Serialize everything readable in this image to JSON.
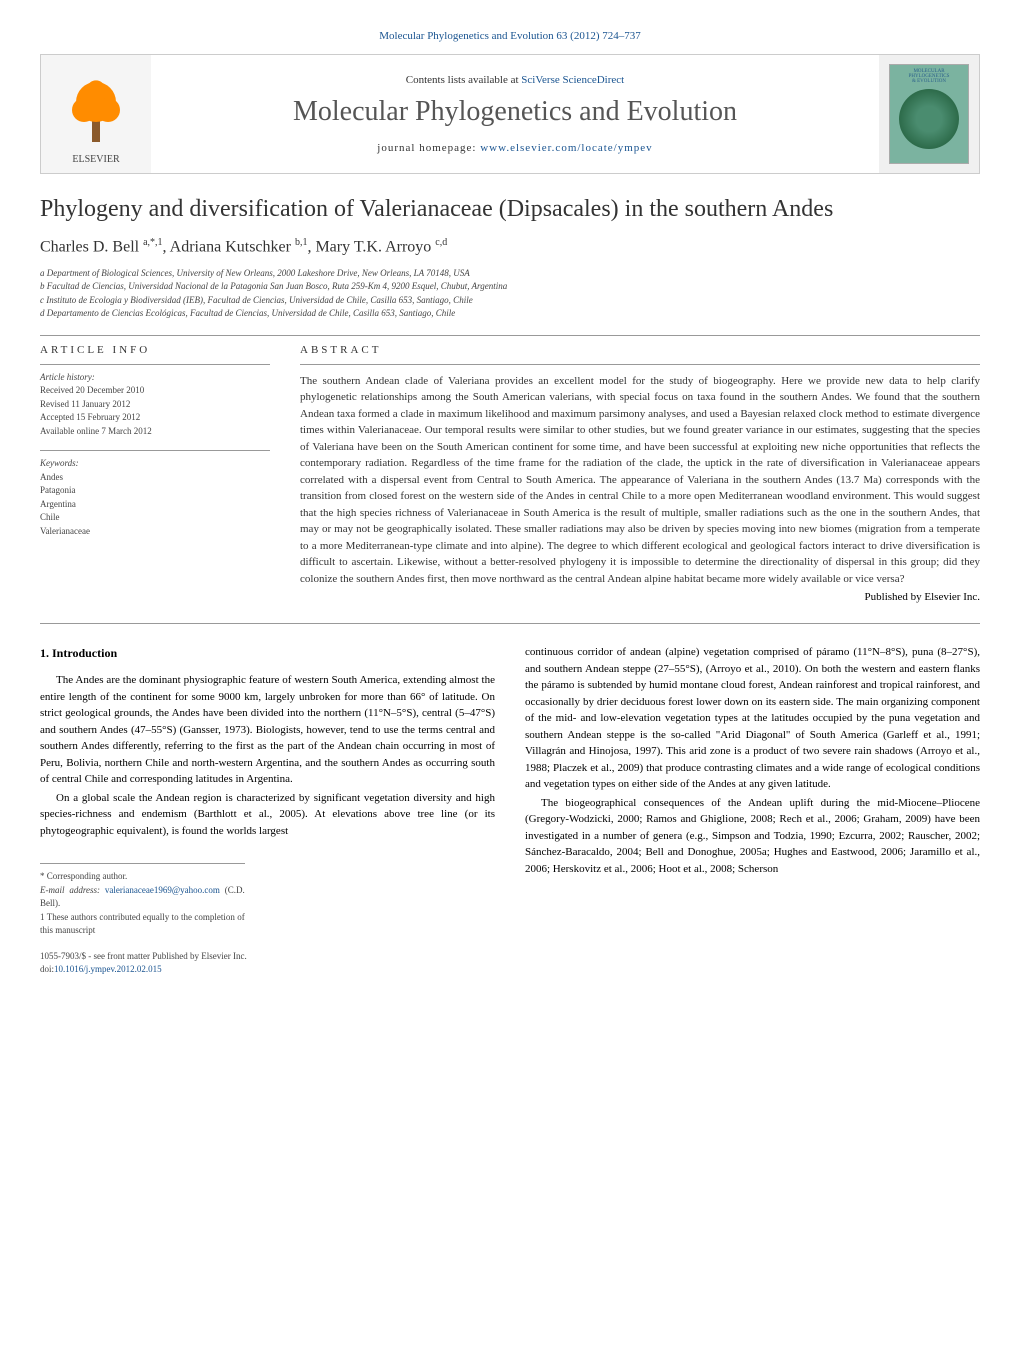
{
  "top_citation": "Molecular Phylogenetics and Evolution 63 (2012) 724–737",
  "banner": {
    "contents_prefix": "Contents lists available at ",
    "contents_link": "SciVerse ScienceDirect",
    "journal_name": "Molecular Phylogenetics and Evolution",
    "homepage_prefix": "journal homepage: ",
    "homepage_url": "www.elsevier.com/locate/ympev",
    "publisher": "ELSEVIER",
    "cover_lines": [
      "MOLECULAR",
      "PHYLOGENETICS",
      "& EVOLUTION"
    ]
  },
  "article": {
    "title": "Phylogeny and diversification of Valerianaceae (Dipsacales) in the southern Andes",
    "authors_html": "Charles D. Bell <sup>a,*,1</sup>, Adriana Kutschker <sup>b,1</sup>, Mary T.K. Arroyo <sup>c,d</sup>",
    "affiliations": [
      "a Department of Biological Sciences, University of New Orleans, 2000 Lakeshore Drive, New Orleans, LA 70148, USA",
      "b Facultad de Ciencias, Universidad Nacional de la Patagonia San Juan Bosco, Ruta 259-Km 4, 9200 Esquel, Chubut, Argentina",
      "c Instituto de Ecologia y Biodiversidad (IEB), Facultad de Ciencias, Universidad de Chile, Casilla 653, Santiago, Chile",
      "d Departamento de Ciencias Ecológicas, Facultad de Ciencias, Universidad de Chile, Casilla 653, Santiago, Chile"
    ]
  },
  "article_info": {
    "header": "ARTICLE INFO",
    "history_label": "Article history:",
    "history": [
      "Received 20 December 2010",
      "Revised 11 January 2012",
      "Accepted 15 February 2012",
      "Available online 7 March 2012"
    ],
    "keywords_label": "Keywords:",
    "keywords": [
      "Andes",
      "Patagonia",
      "Argentina",
      "Chile",
      "Valerianaceae"
    ]
  },
  "abstract": {
    "header": "ABSTRACT",
    "text": "The southern Andean clade of Valeriana provides an excellent model for the study of biogeography. Here we provide new data to help clarify phylogenetic relationships among the South American valerians, with special focus on taxa found in the southern Andes. We found that the southern Andean taxa formed a clade in maximum likelihood and maximum parsimony analyses, and used a Bayesian relaxed clock method to estimate divergence times within Valerianaceae. Our temporal results were similar to other studies, but we found greater variance in our estimates, suggesting that the species of Valeriana have been on the South American continent for some time, and have been successful at exploiting new niche opportunities that reflects the contemporary radiation. Regardless of the time frame for the radiation of the clade, the uptick in the rate of diversification in Valerianaceae appears correlated with a dispersal event from Central to South America. The appearance of Valeriana in the southern Andes (13.7 Ma) corresponds with the transition from closed forest on the western side of the Andes in central Chile to a more open Mediterranean woodland environment. This would suggest that the high species richness of Valerianaceae in South America is the result of multiple, smaller radiations such as the one in the southern Andes, that may or may not be geographically isolated. These smaller radiations may also be driven by species moving into new biomes (migration from a temperate to a more Mediterranean-type climate and into alpine). The degree to which different ecological and geological factors interact to drive diversification is difficult to ascertain. Likewise, without a better-resolved phylogeny it is impossible to determine the directionality of dispersal in this group; did they colonize the southern Andes first, then move northward as the central Andean alpine habitat became more widely available or vice versa?",
    "publisher_line": "Published by Elsevier Inc."
  },
  "body": {
    "intro_heading": "1. Introduction",
    "col1_p1": "The Andes are the dominant physiographic feature of western South America, extending almost the entire length of the continent for some 9000 km, largely unbroken for more than 66° of latitude. On strict geological grounds, the Andes have been divided into the northern (11°N–5°S), central (5–47°S) and southern Andes (47–55°S) (Gansser, 1973). Biologists, however, tend to use the terms central and southern Andes differently, referring to the first as the part of the Andean chain occurring in most of Peru, Bolivia, northern Chile and north-western Argentina, and the southern Andes as occurring south of central Chile and corresponding latitudes in Argentina.",
    "col1_p2": "On a global scale the Andean region is characterized by significant vegetation diversity and high species-richness and endemism (Barthlott et al., 2005). At elevations above tree line (or its phytogeographic equivalent), is found the worlds largest",
    "col2_p1": "continuous corridor of andean (alpine) vegetation comprised of páramo (11°N–8°S), puna (8–27°S), and southern Andean steppe (27–55°S), (Arroyo et al., 2010). On both the western and eastern flanks the páramo is subtended by humid montane cloud forest, Andean rainforest and tropical rainforest, and occasionally by drier deciduous forest lower down on its eastern side. The main organizing component of the mid- and low-elevation vegetation types at the latitudes occupied by the puna vegetation and southern Andean steppe is the so-called \"Arid Diagonal\" of South America (Garleff et al., 1991; Villagrán and Hinojosa, 1997). This arid zone is a product of two severe rain shadows (Arroyo et al., 1988; Placzek et al., 2009) that produce contrasting climates and a wide range of ecological conditions and vegetation types on either side of the Andes at any given latitude.",
    "col2_p2": "The biogeographical consequences of the Andean uplift during the mid-Miocene–Pliocene (Gregory-Wodzicki, 2000; Ramos and Ghiglione, 2008; Rech et al., 2006; Graham, 2009) have been investigated in a number of genera (e.g., Simpson and Todzia, 1990; Ezcurra, 2002; Rauscher, 2002; Sánchez-Baracaldo, 2004; Bell and Donoghue, 2005a; Hughes and Eastwood, 2006; Jaramillo et al., 2006; Herskovitz et al., 2006; Hoot et al., 2008; Scherson"
  },
  "footnotes": {
    "corresponding": "* Corresponding author.",
    "email_label": "E-mail address: ",
    "email": "valerianaceae1969@yahoo.com",
    "email_suffix": " (C.D. Bell).",
    "note1": "1  These authors contributed equally to the completion of this manuscript"
  },
  "bottom": {
    "copyright": "1055-7903/$ - see front matter Published by Elsevier Inc.",
    "doi_label": "doi:",
    "doi": "10.1016/j.ympev.2012.02.015"
  },
  "colors": {
    "link": "#1a5490",
    "text": "#333333",
    "rule": "#999999"
  }
}
